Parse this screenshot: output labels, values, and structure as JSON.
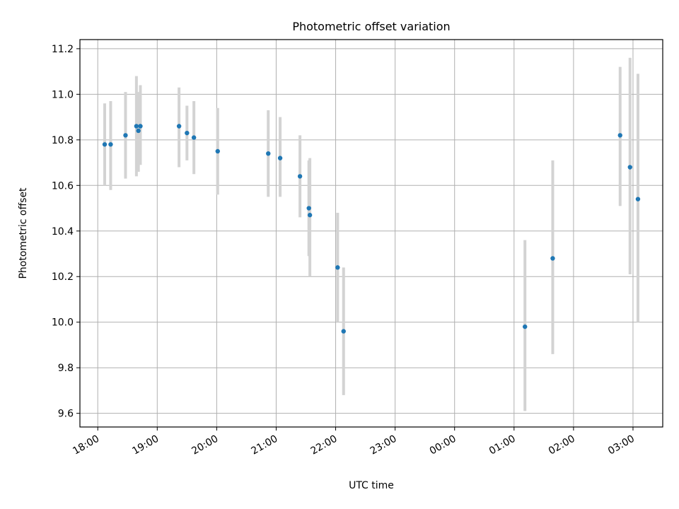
{
  "chart_data": {
    "type": "scatter",
    "title": "Photometric offset variation",
    "xlabel": "UTC time",
    "ylabel": "Photometric offset",
    "x_unit": "hours since 18:00 UTC",
    "xlim": [
      -0.3,
      9.5
    ],
    "ylim": [
      9.54,
      11.24
    ],
    "x_ticks": [
      {
        "value": 0,
        "label": "18:00"
      },
      {
        "value": 1,
        "label": "19:00"
      },
      {
        "value": 2,
        "label": "20:00"
      },
      {
        "value": 3,
        "label": "21:00"
      },
      {
        "value": 4,
        "label": "22:00"
      },
      {
        "value": 5,
        "label": "23:00"
      },
      {
        "value": 6,
        "label": "00:00"
      },
      {
        "value": 7,
        "label": "01:00"
      },
      {
        "value": 8,
        "label": "02:00"
      },
      {
        "value": 9,
        "label": "03:00"
      }
    ],
    "y_ticks": [
      {
        "value": 9.6,
        "label": "9.6"
      },
      {
        "value": 9.8,
        "label": "9.8"
      },
      {
        "value": 10.0,
        "label": "10.0"
      },
      {
        "value": 10.2,
        "label": "10.2"
      },
      {
        "value": 10.4,
        "label": "10.4"
      },
      {
        "value": 10.6,
        "label": "10.6"
      },
      {
        "value": 10.8,
        "label": "10.8"
      },
      {
        "value": 11.0,
        "label": "11.0"
      },
      {
        "value": 11.2,
        "label": "11.2"
      }
    ],
    "grid": true,
    "marker_color": "#1f77b4",
    "errorbar_color": "#d3d3d3",
    "points": [
      {
        "time": "18:07",
        "y": 10.78,
        "ylow": 10.6,
        "yhigh": 10.96
      },
      {
        "time": "18:13",
        "y": 10.78,
        "ylow": 10.58,
        "yhigh": 10.97
      },
      {
        "time": "18:28",
        "y": 10.82,
        "ylow": 10.63,
        "yhigh": 11.01
      },
      {
        "time": "18:39",
        "y": 10.86,
        "ylow": 10.64,
        "yhigh": 11.08
      },
      {
        "time": "18:41",
        "y": 10.84,
        "ylow": 10.66,
        "yhigh": 11.01
      },
      {
        "time": "18:43",
        "y": 10.86,
        "ylow": 10.69,
        "yhigh": 11.04
      },
      {
        "time": "19:22",
        "y": 10.86,
        "ylow": 10.68,
        "yhigh": 11.03
      },
      {
        "time": "19:30",
        "y": 10.83,
        "ylow": 10.71,
        "yhigh": 10.95
      },
      {
        "time": "19:37",
        "y": 10.81,
        "ylow": 10.65,
        "yhigh": 10.97
      },
      {
        "time": "20:01",
        "y": 10.75,
        "ylow": 10.56,
        "yhigh": 10.94
      },
      {
        "time": "20:52",
        "y": 10.74,
        "ylow": 10.55,
        "yhigh": 10.93
      },
      {
        "time": "21:04",
        "y": 10.72,
        "ylow": 10.55,
        "yhigh": 10.9
      },
      {
        "time": "21:24",
        "y": 10.64,
        "ylow": 10.46,
        "yhigh": 10.82
      },
      {
        "time": "21:33",
        "y": 10.5,
        "ylow": 10.29,
        "yhigh": 10.71
      },
      {
        "time": "21:34",
        "y": 10.47,
        "ylow": 10.2,
        "yhigh": 10.72
      },
      {
        "time": "22:02",
        "y": 10.24,
        "ylow": 10.0,
        "yhigh": 10.48
      },
      {
        "time": "22:08",
        "y": 9.96,
        "ylow": 9.68,
        "yhigh": 10.24
      },
      {
        "time": "01:11",
        "y": 9.98,
        "ylow": 9.61,
        "yhigh": 10.36
      },
      {
        "time": "01:39",
        "y": 10.28,
        "ylow": 9.86,
        "yhigh": 10.71
      },
      {
        "time": "02:47",
        "y": 10.82,
        "ylow": 10.51,
        "yhigh": 11.12
      },
      {
        "time": "02:57",
        "y": 10.68,
        "ylow": 10.21,
        "yhigh": 11.16
      },
      {
        "time": "03:05",
        "y": 10.54,
        "ylow": 10.0,
        "yhigh": 11.09
      }
    ]
  }
}
